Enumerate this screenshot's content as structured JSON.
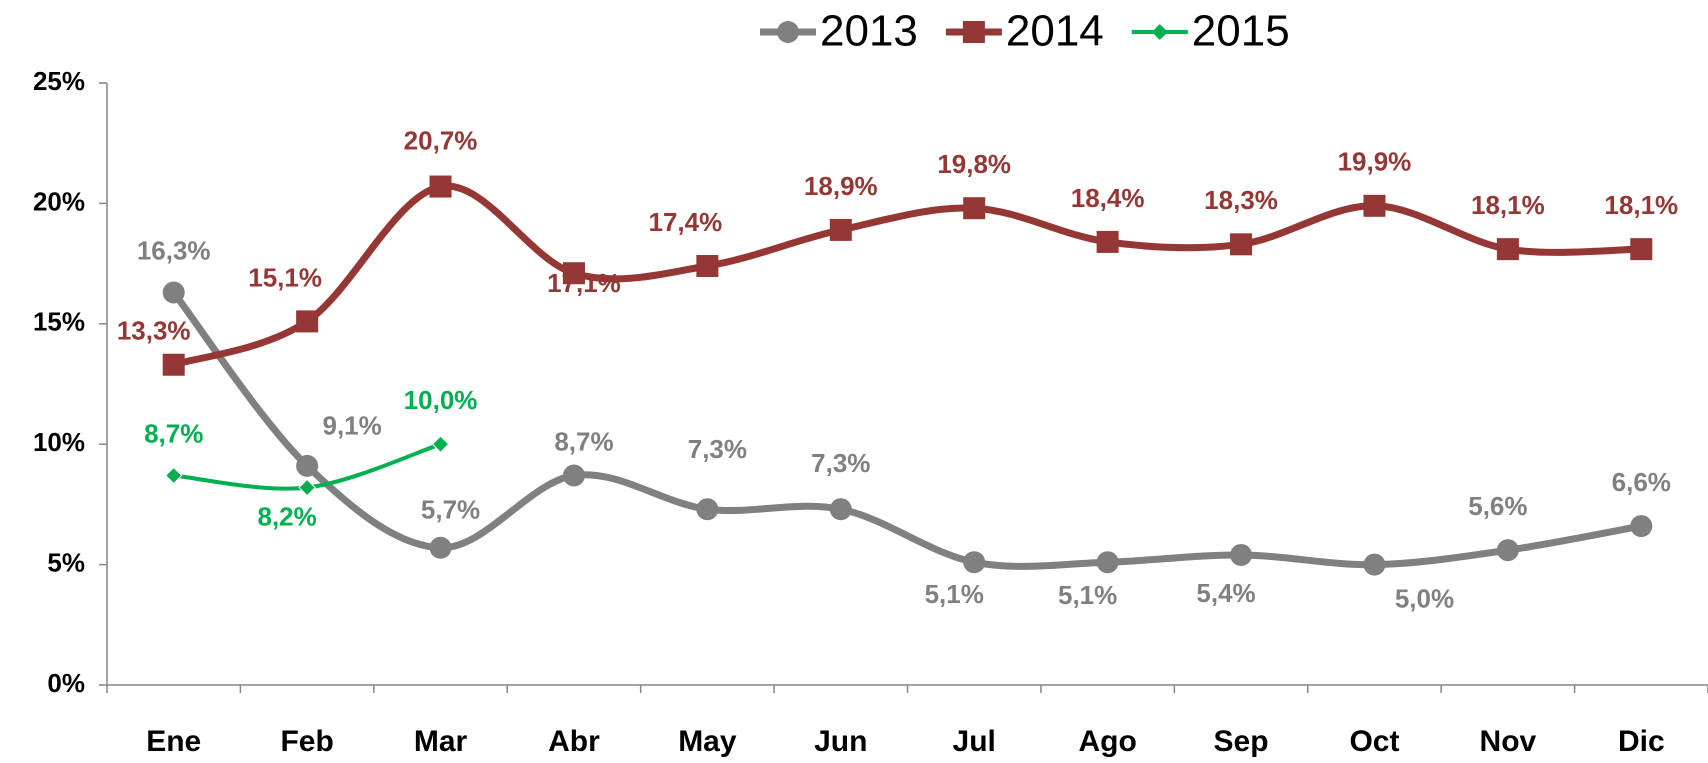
{
  "chart_data": {
    "type": "line",
    "categories": [
      "Ene",
      "Feb",
      "Mar",
      "Abr",
      "May",
      "Jun",
      "Jul",
      "Ago",
      "Sep",
      "Oct",
      "Nov",
      "Dic"
    ],
    "series": [
      {
        "name": "2013",
        "color": "#808080",
        "marker": "circle",
        "values": [
          16.3,
          9.1,
          5.7,
          8.7,
          7.3,
          7.3,
          5.1,
          5.1,
          5.4,
          5.0,
          5.6,
          6.6
        ],
        "value_labels": [
          "16,3%",
          "9,1%",
          "5,7%",
          "8,7%",
          "7,3%",
          "7,3%",
          "5,1%",
          "5,1%",
          "5,4%",
          "5,0%",
          "5,6%",
          "6,6%"
        ]
      },
      {
        "name": "2014",
        "color": "#953735",
        "marker": "square",
        "values": [
          13.3,
          15.1,
          20.7,
          17.1,
          17.4,
          18.9,
          19.8,
          18.4,
          18.3,
          19.9,
          18.1,
          18.1
        ],
        "value_labels": [
          "13,3%",
          "15,1%",
          "20,7%",
          "17,1%",
          "17,4%",
          "18,9%",
          "19,8%",
          "18,4%",
          "18,3%",
          "19,9%",
          "18,1%",
          "18,1%"
        ]
      },
      {
        "name": "2015",
        "color": "#00b050",
        "marker": "diamond",
        "values": [
          8.7,
          8.2,
          10.0,
          null,
          null,
          null,
          null,
          null,
          null,
          null,
          null,
          null
        ],
        "value_labels": [
          "8,7%",
          "8,2%",
          "10,0%",
          null,
          null,
          null,
          null,
          null,
          null,
          null,
          null,
          null
        ]
      }
    ],
    "ylim": [
      0,
      25
    ],
    "yticks": [
      {
        "value": 0,
        "label": "0%"
      },
      {
        "value": 5,
        "label": "5%"
      },
      {
        "value": 10,
        "label": "10%"
      },
      {
        "value": 15,
        "label": "15%"
      },
      {
        "value": 20,
        "label": "20%"
      },
      {
        "value": 25,
        "label": "25%"
      }
    ],
    "legend": "top",
    "smooth": true
  }
}
